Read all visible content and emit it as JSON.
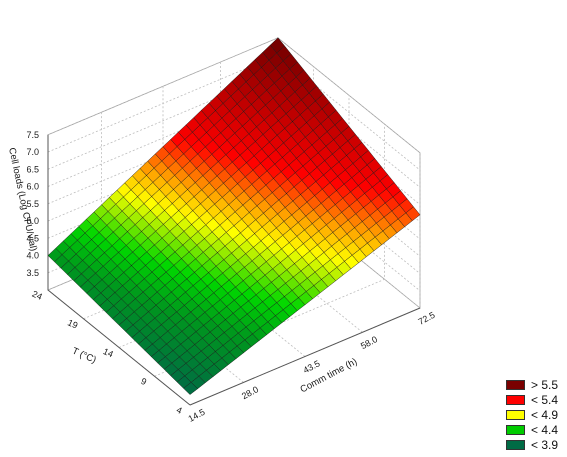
{
  "chart_data": {
    "type": "surface3d",
    "title": "",
    "zlabel": "Cell loads (Log CFU/vial)",
    "xlabel": "Comm time (h)",
    "ylabel": "T (°C)",
    "zlim": [
      3.0,
      7.5
    ],
    "z_ticks": [
      "3.5",
      "4.0",
      "4.5",
      "5.0",
      "5.5",
      "6.0",
      "6.5",
      "7.0",
      "7.5"
    ],
    "x_ticks": [
      "14.5",
      "28.0",
      "43.5",
      "58.0",
      "72.5"
    ],
    "y_ticks": [
      "4",
      "9",
      "14",
      "19",
      "24"
    ],
    "corners": [
      {
        "time_h": 14.5,
        "temp_c": 24,
        "log_cfu": 4.0
      },
      {
        "time_h": 72.5,
        "temp_c": 24,
        "log_cfu": 7.5
      },
      {
        "time_h": 72.5,
        "temp_c": 4,
        "log_cfu": 5.7
      },
      {
        "time_h": 14.5,
        "temp_c": 4,
        "log_cfu": 3.3
      }
    ],
    "grid": true,
    "legend_position": "bottom-right",
    "legend": [
      {
        "label": "> 5.5",
        "color": "#7a0000"
      },
      {
        "label": "< 5.4",
        "color": "#ff0000"
      },
      {
        "label": "< 4.9",
        "color": "#ffff00"
      },
      {
        "label": "< 4.4",
        "color": "#00cc00"
      },
      {
        "label": "< 3.9",
        "color": "#006b45"
      }
    ]
  }
}
